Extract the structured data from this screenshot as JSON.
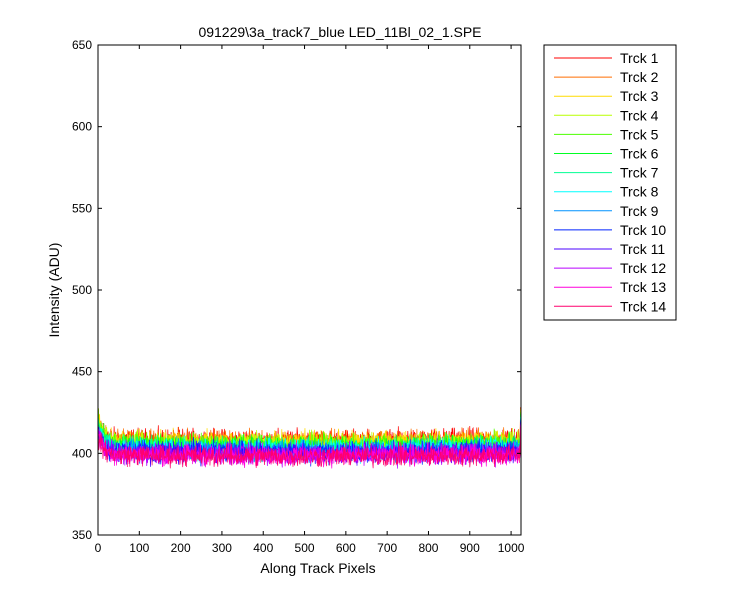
{
  "chart_data": {
    "type": "line",
    "title": "091229\\3a_track7_blue LED_11Bl_02_1.SPE",
    "xlabel": "Along Track Pixels",
    "ylabel": "Intensity (ADU)",
    "xlim": [
      0,
      1024
    ],
    "ylim": [
      350,
      650
    ],
    "xticks": [
      0,
      100,
      200,
      300,
      400,
      500,
      600,
      700,
      800,
      900,
      1000
    ],
    "yticks": [
      350,
      400,
      450,
      500,
      550,
      600,
      650
    ],
    "grid": false,
    "legend_position": "outside-right",
    "series": [
      {
        "name": "Trck 1",
        "color": "#ff0000",
        "edge_start": 423,
        "baseline": 409
      },
      {
        "name": "Trck 2",
        "color": "#ff6e00",
        "edge_start": 423,
        "baseline": 408.5
      },
      {
        "name": "Trck 3",
        "color": "#ffdc00",
        "edge_start": 422,
        "baseline": 408
      },
      {
        "name": "Trck 4",
        "color": "#b9ff00",
        "edge_start": 421,
        "baseline": 407
      },
      {
        "name": "Trck 5",
        "color": "#4bff00",
        "edge_start": 420,
        "baseline": 406
      },
      {
        "name": "Trck 6",
        "color": "#00ff23",
        "edge_start": 419,
        "baseline": 405
      },
      {
        "name": "Trck 7",
        "color": "#00ff92",
        "edge_start": 418,
        "baseline": 404
      },
      {
        "name": "Trck 8",
        "color": "#00ffff",
        "edge_start": 417,
        "baseline": 403.5
      },
      {
        "name": "Trck 9",
        "color": "#0092ff",
        "edge_start": 416,
        "baseline": 402.5
      },
      {
        "name": "Trck 10",
        "color": "#0023ff",
        "edge_start": 415,
        "baseline": 401.5
      },
      {
        "name": "Trck 11",
        "color": "#4b00ff",
        "edge_start": 414,
        "baseline": 401
      },
      {
        "name": "Trck 12",
        "color": "#b900ff",
        "edge_start": 413,
        "baseline": 400
      },
      {
        "name": "Trck 13",
        "color": "#ff00dc",
        "edge_start": 412,
        "baseline": 399.5
      },
      {
        "name": "Trck 14",
        "color": "#ff006e",
        "edge_start": 411,
        "baseline": 399
      }
    ]
  }
}
